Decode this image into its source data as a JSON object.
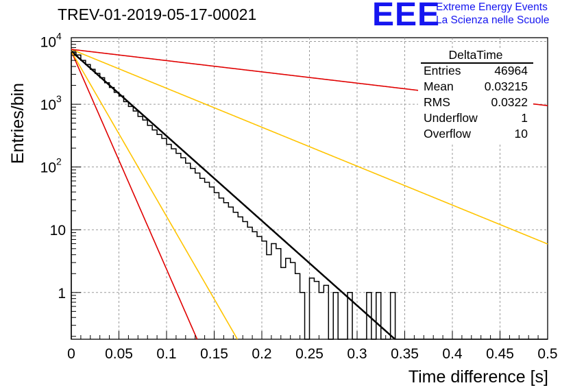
{
  "header": {
    "title": "TREV-01-2019-05-17-00021"
  },
  "logo": {
    "mark": "EEE",
    "line1": "Extreme Energy Events",
    "line2": "La Scienza nelle Scuole"
  },
  "stats": {
    "title": "DeltaTime",
    "rows": [
      {
        "label": "Entries",
        "value": "46964"
      },
      {
        "label": "Mean",
        "value": "0.03215"
      },
      {
        "label": "RMS",
        "value": "0.0322"
      },
      {
        "label": "Underflow",
        "value": "1"
      },
      {
        "label": "Overflow",
        "value": "10"
      }
    ]
  },
  "chart_data": {
    "type": "line",
    "title": "TREV-01-2019-05-17-00021",
    "xlabel": "Time difference [s]",
    "ylabel": "Entries/bin",
    "xlim": [
      0,
      0.5
    ],
    "ylim": [
      0.18,
      11500
    ],
    "yscale": "log",
    "grid": true,
    "x_ticks": [
      {
        "value": 0,
        "label": "0"
      },
      {
        "value": 0.05,
        "label": "0.05"
      },
      {
        "value": 0.1,
        "label": "0.1"
      },
      {
        "value": 0.15,
        "label": "0.15"
      },
      {
        "value": 0.2,
        "label": "0.2"
      },
      {
        "value": 0.25,
        "label": "0.25"
      },
      {
        "value": 0.3,
        "label": "0.3"
      },
      {
        "value": 0.35,
        "label": "0.35"
      },
      {
        "value": 0.4,
        "label": "0.4"
      },
      {
        "value": 0.45,
        "label": "0.45"
      },
      {
        "value": 0.5,
        "label": "0.5"
      }
    ],
    "y_ticks": [
      {
        "value": 1,
        "label": "1"
      },
      {
        "value": 10,
        "label": "10"
      },
      {
        "value": 100,
        "label": "10",
        "exponent": "2"
      },
      {
        "value": 1000,
        "label": "10",
        "exponent": "3"
      },
      {
        "value": 10000,
        "label": "10",
        "exponent": "4"
      }
    ],
    "histogram": {
      "bin_width": 0.005,
      "counts": [
        6700,
        6100,
        5000,
        4300,
        3600,
        3100,
        2650,
        2200,
        1850,
        1550,
        1350,
        1100,
        920,
        780,
        640,
        560,
        460,
        390,
        330,
        285,
        230,
        195,
        165,
        140,
        115,
        95,
        80,
        66,
        57,
        48,
        39,
        32,
        27,
        23,
        19,
        16,
        13.5,
        11,
        9.3,
        7.8,
        6.6,
        4,
        6,
        5,
        2.5,
        3.5,
        3,
        2,
        1,
        0,
        1.7,
        1.5,
        1,
        1.3,
        0,
        1,
        0,
        0,
        1,
        0,
        0,
        0,
        1,
        0,
        1,
        0,
        0,
        1,
        0,
        0,
        0,
        0,
        0,
        0,
        0,
        0,
        0,
        0,
        0,
        0,
        0,
        0,
        0,
        0,
        0,
        0,
        0,
        0,
        0,
        0,
        0,
        0,
        0,
        0,
        0,
        0,
        0,
        0,
        0,
        0
      ],
      "color": "#000000"
    },
    "series": [
      {
        "type": "exponential",
        "amplitude": 7000,
        "tau": 0.03215,
        "color": "#000000",
        "width": 2.5
      },
      {
        "type": "exponential",
        "amplitude": 7500,
        "tau": 0.07,
        "x_end": 0.5,
        "color": "#ffc400",
        "width": 1.6
      },
      {
        "type": "exponential",
        "amplitude": 7500,
        "tau": 0.242,
        "x_end": 0.5,
        "color": "#e00000",
        "width": 1.6
      },
      {
        "type": "exponential",
        "amplitude": 7000,
        "tau": 0.0125,
        "color": "#e00000",
        "width": 1.6
      },
      {
        "type": "exponential",
        "amplitude": 7000,
        "tau": 0.0165,
        "color": "#ffc400",
        "width": 1.6
      }
    ]
  }
}
